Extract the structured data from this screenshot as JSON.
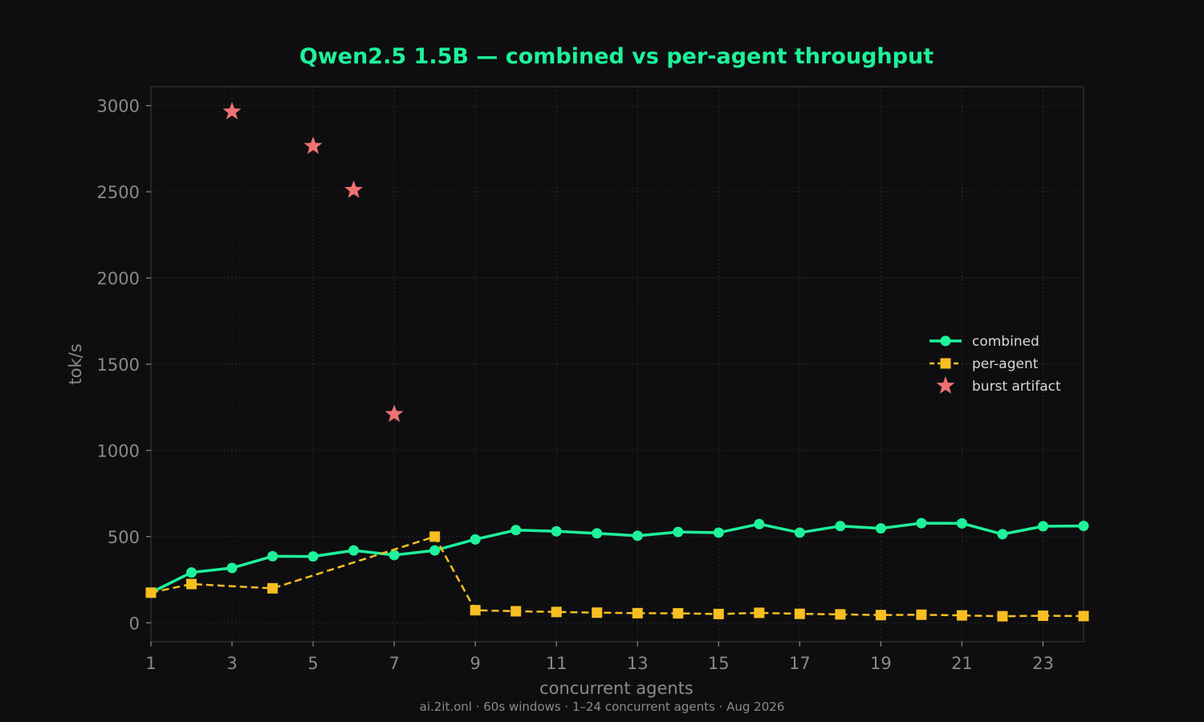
{
  "chart_data": {
    "type": "line",
    "title": "Qwen2.5 1.5B — combined vs per-agent throughput",
    "xlabel": "concurrent agents",
    "ylabel": "tok/s",
    "footer": "ai.2it.onl · 60s windows · 1–24 concurrent agents · Aug 2026",
    "xlim": [
      1,
      24
    ],
    "ylim": [
      -110,
      3110
    ],
    "x_ticks": [
      1,
      3,
      5,
      7,
      9,
      11,
      13,
      15,
      17,
      19,
      21,
      23
    ],
    "y_ticks": [
      0,
      500,
      1000,
      1500,
      2000,
      2500,
      3000
    ],
    "grid": true,
    "legend_position": "right",
    "series": [
      {
        "name": "combined",
        "color": "#1ef29a",
        "style": "solid",
        "marker": "circle",
        "x": [
          1,
          2,
          3,
          4,
          5,
          6,
          7,
          8,
          9,
          10,
          11,
          12,
          13,
          14,
          15,
          16,
          17,
          18,
          19,
          20,
          21,
          22,
          23,
          24
        ],
        "y": [
          175,
          292,
          318,
          386,
          385,
          420,
          393,
          420,
          484,
          538,
          531,
          519,
          505,
          527,
          523,
          573,
          523,
          561,
          548,
          578,
          577,
          514,
          560,
          562
        ]
      },
      {
        "name": "per-agent",
        "color": "#f8be22",
        "style": "dashed",
        "marker": "square",
        "x": [
          1,
          2,
          4,
          8,
          9,
          10,
          11,
          12,
          13,
          14,
          15,
          16,
          17,
          18,
          19,
          20,
          21,
          22,
          23,
          24
        ],
        "y": [
          175,
          225,
          200,
          500,
          73,
          67,
          63,
          59,
          56,
          55,
          51,
          58,
          52,
          49,
          45,
          47,
          43,
          38,
          41,
          39
        ]
      },
      {
        "name": "burst artifact",
        "color": "#f07272",
        "style": "none",
        "marker": "star",
        "x": [
          3,
          5,
          6,
          7
        ],
        "y": [
          2965,
          2765,
          2510,
          1210
        ]
      }
    ]
  }
}
